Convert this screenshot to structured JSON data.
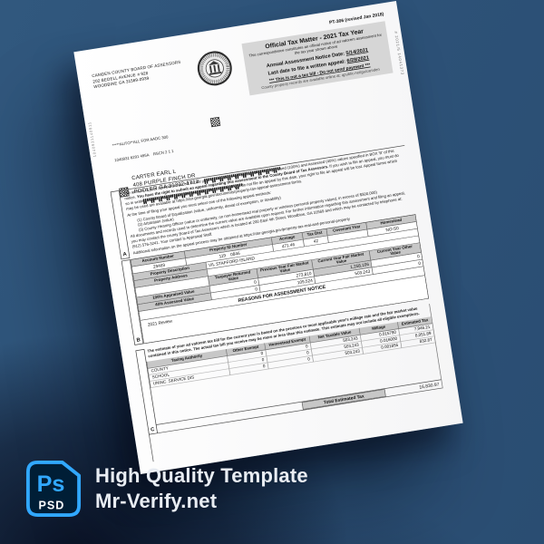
{
  "page": {
    "bg_top": "#31587e",
    "bg_bottom": "#2a4d72",
    "shadow_color": "#070d1e"
  },
  "watermark": {
    "badge_ps": "Ps",
    "badge_psd": "PSD",
    "line1": "High Quality Template",
    "line2": "Mr-Verify.net",
    "accent": "#31a8ff",
    "badge_bg": "#001e36"
  },
  "doc": {
    "form_number": "PT-306 (revised Jan 2018)",
    "left_edge_code": "1040931140911",
    "right_edge_code": "# 2021/5  14041373",
    "sender": {
      "line1": "CAMDEN COUNTY BOARD OF ASSESSORS",
      "line2": "202 BEDELL AVENUE # 928",
      "line3": "WOODBINE GA 31569-0939"
    },
    "notice_box": {
      "title": "Official Tax Matter - 2021 Tax Year",
      "subtitle": "This correspondence constitutes an official notice of ad valorem assessment for the tax year shown above",
      "notice_date_label": "Annual Assessment Notice Date:",
      "notice_date": "5/14/2021",
      "appeal_label": "Last date to file a written appeal:",
      "appeal_date": "6/28/2021",
      "warning": "*** This is not a tax bill - Do not send payment ***",
      "records_note": "County property records are available online at:  qpublic.net/ga/camden"
    },
    "mail": {
      "sort_line1": "*****AUTO**ALL FOR AADC 300",
      "sort_line2": "1040931 6291 495A    RSCN 2 1 1",
      "name": "CARTER EARL L",
      "address1": "408 PURPLE FINCH DR",
      "address2": "POOLER GA 31322-1712"
    },
    "section_a": {
      "label": "A",
      "para1_plain": "The amount of your ad valorem tax bill for the year shown above will be based on the Appraised (100%) and Assessed (40%) values specified in BOX 'B' of this notice. ",
      "para1_bold": "You have the right to submit an appeal regarding this assessment to the County Board of Tax Assessors.",
      "para1_rest": " If you wish to file an appeal, you must do so in writing no later than 45 days after the date of this notice. If you do not file an appeal by this date, your right to file an appeal will be lost. Appeal forms which may be used are available at https://dor.georgia.gov/documents/property-tax-appeal-assessment-forms.",
      "methods_intro": "At the time of filing your appeal you must select one of the following appeal methods:",
      "method1": "(1)  County Board of Equalization (value, uniformity, denial of exemption, or taxability)",
      "method2": "(2)  Arbitration (value)",
      "method3": "(3)  County Hearing Officer (value or uniformity, on non-homestead real property or wireless personal property valued, in excess of $500,000)",
      "para2": "All documents and records used to determine the current value are available upon request. For further information regarding this assessment and filing an appeal, you may contact the county Board of Tax Assessors which is located at 200 East 4th Street, Woodbine, GA 31569 and which may be contacted by telephone at: (912) 576-3241. Your contact is Appraisal Staff.",
      "para3": "Additional information on the appeal process may be obtained at https://dor.georgia.gov/property-tax-real-and-personal-property"
    },
    "section_b": {
      "label": "B",
      "h_account": "Account Number",
      "h_pid": "Property ID Number",
      "h_acreage": "Acreage",
      "h_taxdist": "Tax Dist",
      "h_covenant": "Covenant Year",
      "h_homestead": "Homestead",
      "account": "29469",
      "pid": "119    0846",
      "acreage": "471.46",
      "taxdist": "42",
      "covenant": "",
      "homestead": "NO-S0",
      "h_prop_desc": "Property Description",
      "prop_desc": "V/L STAFFORD ISLAND",
      "h_prop_addr": "Property Address",
      "prop_addr": "",
      "h_returned": "Taxpayer Returned Value",
      "h_prev": "Previous Year Fair Market Value",
      "h_curr": "Current Year Fair Market Value",
      "h_other": "Current Year Other Value",
      "r1_label": "100% Appraised Value",
      "r1_returned": "0",
      "r1_prev": "273,810",
      "r1_curr": "1,258,106",
      "r1_other": "0",
      "r2_label": "40% Assessed Value",
      "r2_returned": "0",
      "r2_prev": "109,524",
      "r2_curr": "503,243",
      "r2_other": "0",
      "reasons_header": "REASONS FOR ASSESSMENT NOTICE",
      "reason": "2021 Review"
    },
    "section_c": {
      "label": "C",
      "intro": "The estimate of your ad valorem tax bill for the current year is based on the previous or most applicable year's millage rate and the fair market value contained in this notice. The actual tax bill you receive may be more or less than this estimate. This estimate may not include all eligible exemptions.",
      "h_authority": "Taxing Authority",
      "h_other": "Other Exempt",
      "h_homestead": "Homestead Exempt",
      "h_net": "Net Taxable Value",
      "h_millage": "Millage",
      "h_tax": "Estimated Tax",
      "rows": [
        {
          "authority": "COUNTY",
          "other": "0",
          "homestead": "0",
          "net": "503,243",
          "millage": "0.015790",
          "tax": "7,946.21"
        },
        {
          "authority": "SCHOOL",
          "other": "0",
          "homestead": "0",
          "net": "503,243",
          "millage": "0.016000",
          "tax": "8,051.89"
        },
        {
          "authority": "UNINC. SERVICE DIS",
          "other": "0",
          "homestead": "0",
          "net": "503,243",
          "millage": "0.001655",
          "tax": "832.87"
        }
      ],
      "total_label": "Total Estimated Tax",
      "total_value": "16,830.97"
    }
  }
}
